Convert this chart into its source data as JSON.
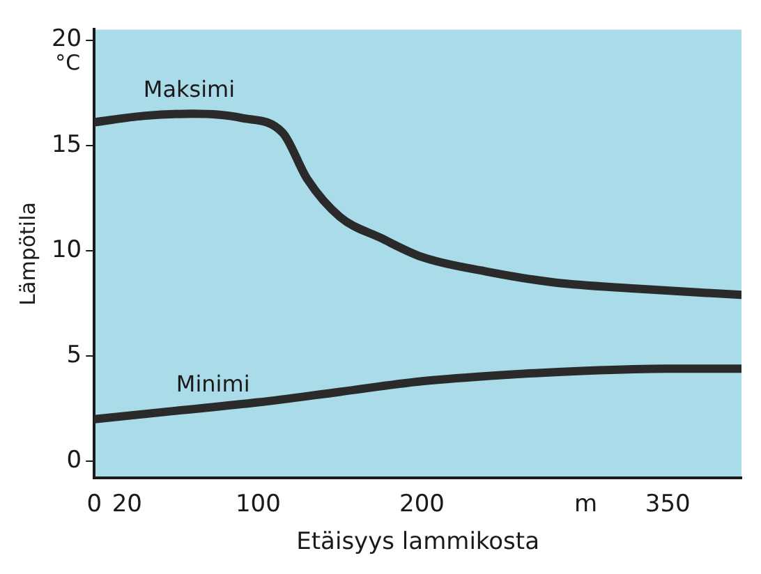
{
  "chart_data": {
    "type": "line",
    "xlabel": "Etäisyys lammikosta",
    "ylabel": "Lämpötila",
    "annotations": [
      "°C"
    ],
    "xlim": [
      0,
      395
    ],
    "xticks": [
      0,
      20,
      100,
      200,
      {
        "value": 300,
        "label": "m"
      },
      350
    ],
    "ylim": [
      -0.8,
      20.5
    ],
    "yticks": [
      0,
      5,
      10,
      15,
      20
    ],
    "grid": false,
    "legend": false,
    "marker": "none",
    "line_style": "solid",
    "series": [
      {
        "name": "Maksimi",
        "color": "#2a2a2a",
        "x": [
          0,
          30,
          60,
          90,
          115,
          130,
          150,
          175,
          200,
          240,
          280,
          330,
          395
        ],
        "values": [
          16.1,
          16.4,
          16.5,
          16.3,
          15.6,
          13.4,
          11.6,
          10.6,
          9.7,
          9.0,
          8.5,
          8.2,
          7.9
        ]
      },
      {
        "name": "Minimi",
        "color": "#2a2a2a",
        "x": [
          0,
          50,
          100,
          150,
          200,
          250,
          300,
          350,
          395
        ],
        "values": [
          2.0,
          2.4,
          2.8,
          3.3,
          3.8,
          4.1,
          4.3,
          4.4,
          4.4
        ]
      }
    ]
  }
}
